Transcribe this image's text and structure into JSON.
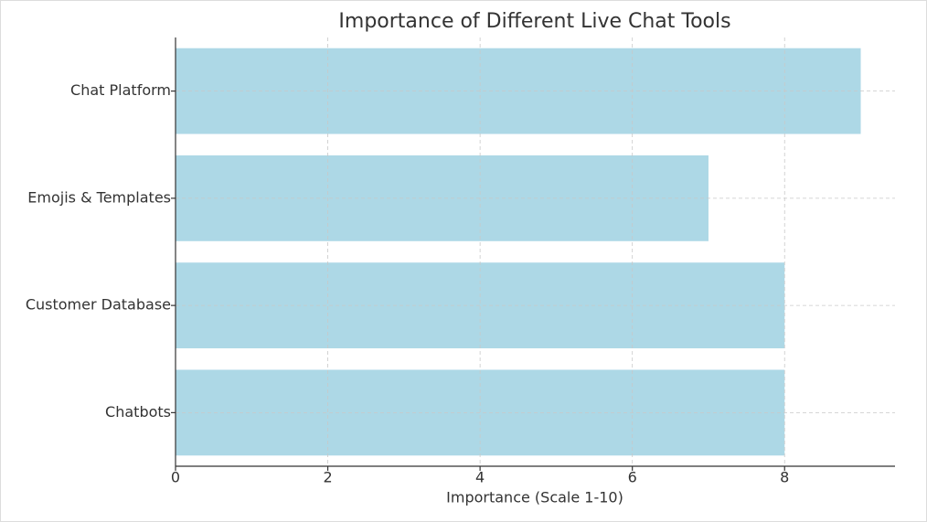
{
  "chart_data": {
    "type": "bar",
    "orientation": "horizontal",
    "title": "Importance of Different Live Chat Tools",
    "xlabel": "Importance (Scale 1-10)",
    "categories": [
      "Chat Platform",
      "Emojis & Templates",
      "Customer Database",
      "Chatbots"
    ],
    "values": [
      9,
      7,
      8,
      8
    ],
    "color": "#add8e6",
    "xlim": [
      0,
      9.45
    ],
    "xticks": [
      0,
      2,
      4,
      6,
      8
    ],
    "grid": true
  }
}
